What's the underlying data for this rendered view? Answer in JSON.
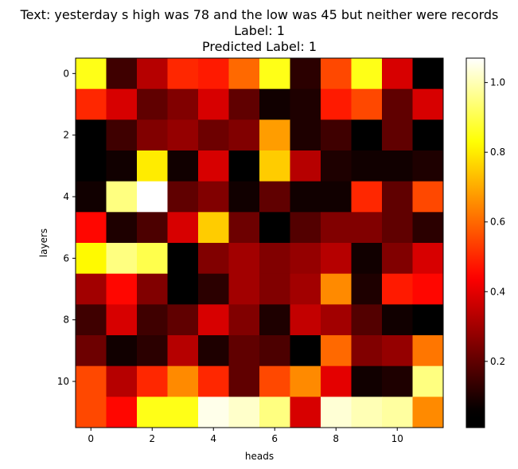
{
  "chart_data": {
    "type": "heatmap",
    "title_lines": [
      "Text: yesterday s high was 78 and the low was 45 but neither were records",
      "Label: 1",
      "Predicted Label: 1"
    ],
    "xlabel": "heads",
    "ylabel": "layers",
    "x_ticks": [
      0,
      2,
      4,
      6,
      8,
      10
    ],
    "y_ticks": [
      0,
      2,
      4,
      6,
      8,
      10
    ],
    "colormap": "hot",
    "colorbar": {
      "range": [
        0.01,
        1.07
      ],
      "ticks": [
        0.2,
        0.4,
        0.6,
        0.8,
        1.0
      ],
      "tick_labels": [
        "0.2",
        "0.4",
        "0.6",
        "0.8",
        "1.0"
      ]
    },
    "matrix": [
      [
        0.85,
        0.15,
        0.33,
        0.5,
        0.48,
        0.6,
        0.85,
        0.12,
        0.55,
        0.85,
        0.38,
        0.05
      ],
      [
        0.5,
        0.38,
        0.2,
        0.25,
        0.38,
        0.2,
        0.08,
        0.1,
        0.48,
        0.55,
        0.2,
        0.38
      ],
      [
        0.01,
        0.15,
        0.25,
        0.28,
        0.22,
        0.25,
        0.68,
        0.1,
        0.15,
        0.05,
        0.2,
        0.03
      ],
      [
        0.05,
        0.08,
        0.8,
        0.08,
        0.38,
        0.05,
        0.75,
        0.33,
        0.1,
        0.08,
        0.08,
        0.1
      ],
      [
        0.08,
        0.95,
        1.07,
        0.2,
        0.25,
        0.08,
        0.2,
        0.08,
        0.08,
        0.5,
        0.2,
        0.55
      ],
      [
        0.45,
        0.1,
        0.17,
        0.38,
        0.75,
        0.22,
        0.05,
        0.18,
        0.25,
        0.25,
        0.2,
        0.12
      ],
      [
        0.82,
        0.95,
        0.9,
        0.01,
        0.25,
        0.3,
        0.25,
        0.28,
        0.33,
        0.08,
        0.25,
        0.38
      ],
      [
        0.3,
        0.45,
        0.25,
        0.05,
        0.12,
        0.3,
        0.25,
        0.3,
        0.65,
        0.1,
        0.48,
        0.45
      ],
      [
        0.15,
        0.38,
        0.15,
        0.2,
        0.38,
        0.25,
        0.1,
        0.35,
        0.3,
        0.18,
        0.08,
        0.05
      ],
      [
        0.22,
        0.08,
        0.12,
        0.33,
        0.1,
        0.2,
        0.17,
        0.05,
        0.6,
        0.25,
        0.28,
        0.62
      ],
      [
        0.55,
        0.33,
        0.5,
        0.65,
        0.5,
        0.2,
        0.55,
        0.65,
        0.4,
        0.08,
        0.1,
        0.95
      ],
      [
        0.55,
        0.45,
        0.85,
        0.85,
        1.05,
        1.02,
        0.95,
        0.38,
        1.03,
        1.0,
        0.98,
        0.65
      ]
    ]
  }
}
